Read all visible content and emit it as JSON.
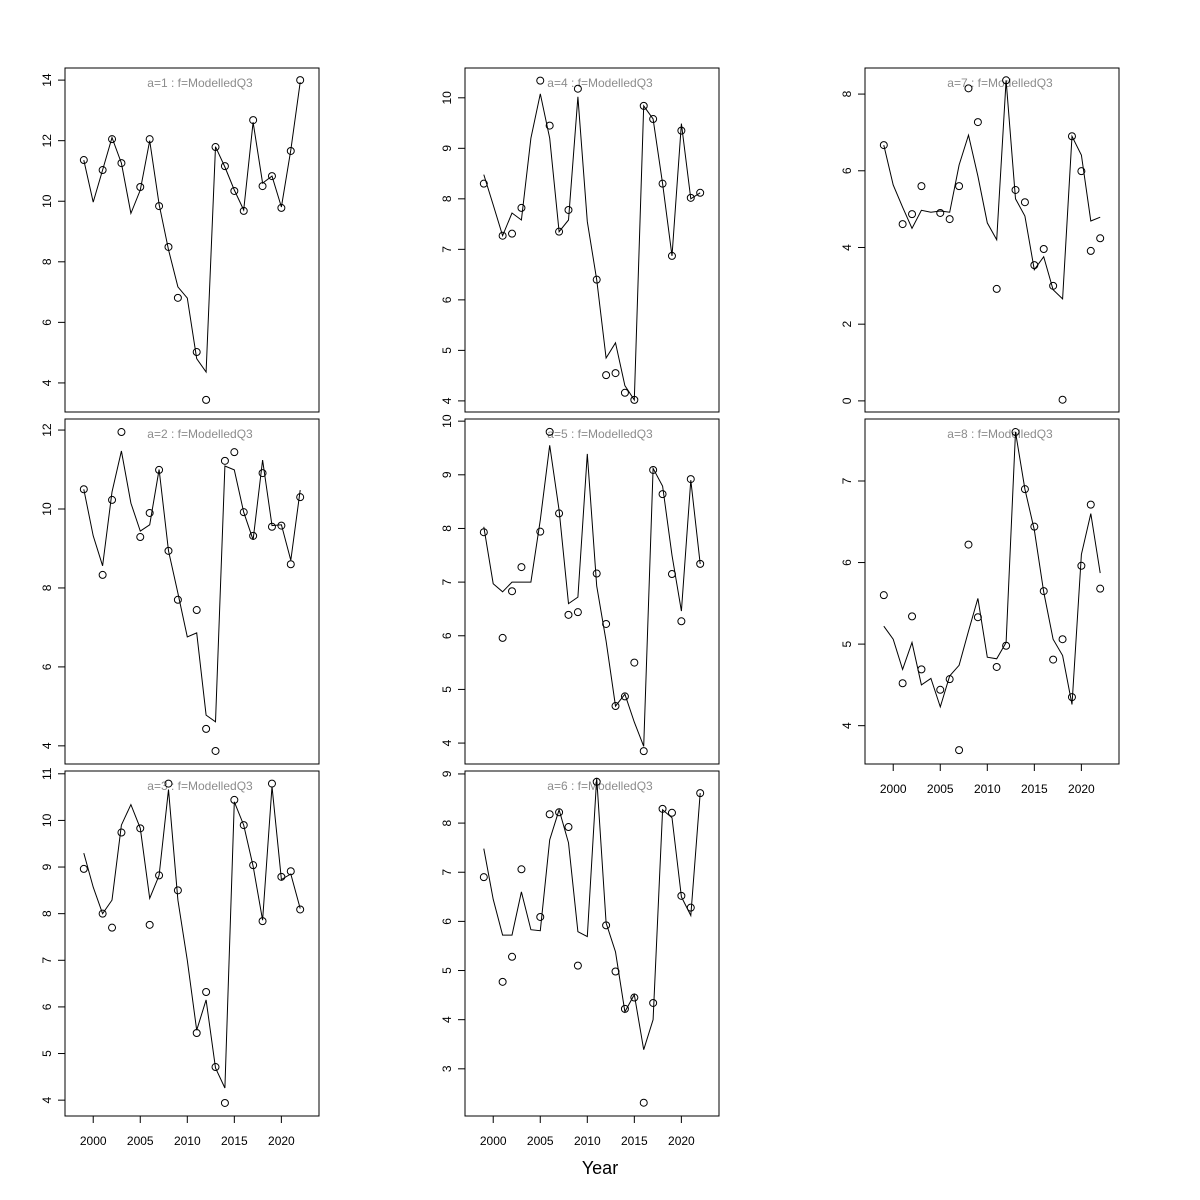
{
  "xlabel": "Year",
  "chart_data": [
    {
      "type": "line",
      "title": "a=1  :  f=ModelledQ3",
      "xlim": [
        1997,
        2024
      ],
      "ylim": [
        3.04,
        14.4
      ],
      "yticks": [
        4,
        6,
        8,
        10,
        12,
        14
      ],
      "xticks": [],
      "x": [
        1999,
        2000,
        2001,
        2002,
        2003,
        2004,
        2005,
        2006,
        2007,
        2008,
        2009,
        2010,
        2011,
        2012,
        2013,
        2014,
        2015,
        2016,
        2017,
        2018,
        2019,
        2020,
        2021,
        2022
      ],
      "observed": [
        11.36,
        null,
        11.03,
        12.05,
        11.26,
        null,
        10.47,
        12.05,
        9.84,
        8.49,
        6.81,
        null,
        5.02,
        3.44,
        11.79,
        11.16,
        10.34,
        9.68,
        12.68,
        10.5,
        10.83,
        9.78,
        11.66,
        14.0
      ],
      "modelled": [
        11.36,
        9.97,
        11.03,
        12.1,
        11.26,
        9.6,
        10.37,
        12.0,
        9.9,
        8.4,
        7.17,
        6.8,
        4.8,
        4.36,
        11.8,
        11.13,
        10.37,
        9.71,
        12.61,
        10.6,
        10.83,
        9.81,
        11.69,
        13.93
      ]
    },
    {
      "type": "line",
      "title": "a=2  :  f=ModelledQ3",
      "xlim": [
        1997,
        2024
      ],
      "ylim": [
        3.54,
        12.28
      ],
      "yticks": [
        4,
        6,
        8,
        10,
        12
      ],
      "xticks": [],
      "x": [
        1999,
        2000,
        2001,
        2002,
        2003,
        2004,
        2005,
        2006,
        2007,
        2008,
        2009,
        2010,
        2011,
        2012,
        2013,
        2014,
        2015,
        2016,
        2017,
        2018,
        2019,
        2020,
        2021,
        2022
      ],
      "observed": [
        10.5,
        null,
        8.33,
        10.23,
        11.95,
        null,
        9.29,
        9.9,
        10.99,
        8.94,
        7.7,
        null,
        7.44,
        4.43,
        3.87,
        11.22,
        11.44,
        9.92,
        9.32,
        10.91,
        9.55,
        9.58,
        8.6,
        10.3
      ],
      "modelled": [
        10.5,
        9.32,
        8.56,
        10.43,
        11.47,
        10.15,
        9.44,
        9.6,
        11.0,
        8.94,
        7.87,
        6.76,
        6.86,
        4.78,
        4.61,
        11.09,
        10.99,
        9.92,
        9.22,
        11.24,
        9.58,
        9.6,
        8.7,
        10.48
      ]
    },
    {
      "type": "line",
      "title": "a=3  :  f=ModelledQ3",
      "xlim": [
        1997,
        2024
      ],
      "ylim": [
        3.66,
        11.06
      ],
      "yticks": [
        4,
        5,
        6,
        7,
        8,
        9,
        10,
        11
      ],
      "xticks": [
        2000,
        2005,
        2010,
        2015,
        2020
      ],
      "x": [
        1999,
        2000,
        2001,
        2002,
        2003,
        2004,
        2005,
        2006,
        2007,
        2008,
        2009,
        2010,
        2011,
        2012,
        2013,
        2014,
        2015,
        2016,
        2017,
        2018,
        2019,
        2020,
        2021,
        2022
      ],
      "observed": [
        8.96,
        null,
        8.0,
        7.7,
        9.74,
        null,
        9.83,
        7.76,
        8.82,
        10.79,
        8.5,
        null,
        5.44,
        6.32,
        4.71,
        3.94,
        10.44,
        9.9,
        9.04,
        7.84,
        10.79,
        8.79,
        8.91,
        8.09
      ],
      "modelled": [
        9.3,
        8.57,
        8.0,
        8.29,
        9.9,
        10.34,
        9.83,
        8.33,
        8.82,
        10.66,
        8.29,
        7.0,
        5.5,
        6.15,
        4.69,
        4.26,
        10.4,
        9.9,
        9.02,
        7.86,
        10.73,
        8.73,
        8.85,
        8.11
      ]
    },
    {
      "type": "line",
      "title": "a=4  :  f=ModelledQ3",
      "xlim": [
        1997,
        2024
      ],
      "ylim": [
        3.78,
        10.59
      ],
      "yticks": [
        4,
        5,
        6,
        7,
        8,
        9,
        10
      ],
      "xticks": [],
      "x": [
        1999,
        2000,
        2001,
        2002,
        2003,
        2004,
        2005,
        2006,
        2007,
        2008,
        2009,
        2010,
        2011,
        2012,
        2013,
        2014,
        2015,
        2016,
        2017,
        2018,
        2019,
        2020,
        2021,
        2022
      ],
      "observed": [
        8.3,
        null,
        7.27,
        7.31,
        7.82,
        null,
        10.34,
        9.45,
        7.35,
        7.78,
        10.18,
        null,
        6.4,
        4.51,
        4.55,
        4.16,
        4.02,
        9.84,
        9.58,
        8.3,
        6.87,
        9.35,
        8.02,
        8.12
      ],
      "modelled": [
        8.48,
        7.88,
        7.27,
        7.72,
        7.58,
        9.2,
        10.08,
        9.2,
        7.35,
        7.58,
        10.02,
        7.55,
        6.4,
        4.85,
        5.15,
        4.3,
        4.02,
        9.84,
        9.58,
        8.3,
        6.87,
        9.49,
        8.0,
        8.12
      ]
    },
    {
      "type": "line",
      "title": "a=5  :  f=ModelledQ3",
      "xlim": [
        1997,
        2024
      ],
      "ylim": [
        3.61,
        10.04
      ],
      "yticks": [
        4,
        5,
        6,
        7,
        8,
        9,
        10
      ],
      "xticks": [],
      "x": [
        1999,
        2000,
        2001,
        2002,
        2003,
        2004,
        2005,
        2006,
        2007,
        2008,
        2009,
        2010,
        2011,
        2012,
        2013,
        2014,
        2015,
        2016,
        2017,
        2018,
        2019,
        2020,
        2021,
        2022
      ],
      "observed": [
        7.93,
        null,
        5.96,
        6.83,
        7.28,
        null,
        7.94,
        9.8,
        8.28,
        6.39,
        6.44,
        null,
        7.16,
        6.22,
        4.69,
        4.87,
        5.5,
        3.85,
        9.09,
        8.64,
        7.15,
        6.27,
        8.92,
        7.34
      ],
      "modelled": [
        8.03,
        6.97,
        6.82,
        7.0,
        7.0,
        7.0,
        8.16,
        9.55,
        8.34,
        6.6,
        6.72,
        9.39,
        6.93,
        5.9,
        4.69,
        4.91,
        4.39,
        3.94,
        9.12,
        8.79,
        7.5,
        6.46,
        8.9,
        7.34
      ]
    },
    {
      "type": "line",
      "title": "a=6  :  f=ModelledQ3",
      "xlim": [
        1997,
        2024
      ],
      "ylim": [
        2.04,
        9.06
      ],
      "yticks": [
        3,
        4,
        5,
        6,
        7,
        8,
        9
      ],
      "xticks": [
        2000,
        2005,
        2010,
        2015,
        2020
      ],
      "x": [
        1999,
        2000,
        2001,
        2002,
        2003,
        2004,
        2005,
        2006,
        2007,
        2008,
        2009,
        2010,
        2011,
        2012,
        2013,
        2014,
        2015,
        2016,
        2017,
        2018,
        2019,
        2020,
        2021,
        2022
      ],
      "observed": [
        6.9,
        null,
        4.77,
        5.28,
        7.06,
        null,
        6.09,
        8.18,
        8.22,
        7.92,
        5.1,
        null,
        8.84,
        5.92,
        4.98,
        4.22,
        4.45,
        2.31,
        4.34,
        8.29,
        8.21,
        6.52,
        6.28,
        8.61
      ],
      "modelled": [
        7.48,
        6.45,
        5.72,
        5.72,
        6.6,
        5.83,
        5.81,
        7.66,
        8.27,
        7.6,
        5.79,
        5.69,
        8.92,
        5.97,
        5.38,
        4.16,
        4.51,
        3.39,
        4.0,
        8.27,
        8.11,
        6.5,
        6.12,
        8.61
      ]
    },
    {
      "type": "line",
      "title": "a=7  :  f=ModelledQ3",
      "xlim": [
        1997,
        2024
      ],
      "ylim": [
        -0.29,
        8.68
      ],
      "yticks": [
        0,
        2,
        4,
        6,
        8
      ],
      "xticks": [],
      "x": [
        1999,
        2000,
        2001,
        2002,
        2003,
        2004,
        2005,
        2006,
        2007,
        2008,
        2009,
        2010,
        2011,
        2012,
        2013,
        2014,
        2015,
        2016,
        2017,
        2018,
        2019,
        2020,
        2021,
        2022
      ],
      "observed": [
        6.67,
        null,
        4.61,
        4.87,
        5.6,
        null,
        4.9,
        4.74,
        5.6,
        8.15,
        7.27,
        null,
        2.92,
        8.36,
        5.5,
        5.18,
        3.54,
        3.96,
        3.0,
        0.03,
        6.9,
        5.99,
        3.91,
        4.24
      ],
      "modelled": [
        6.67,
        5.63,
        5.05,
        4.5,
        4.97,
        4.92,
        4.95,
        4.92,
        6.15,
        6.93,
        5.86,
        4.64,
        4.2,
        8.36,
        5.27,
        4.82,
        3.42,
        3.76,
        2.9,
        2.66,
        6.9,
        6.41,
        4.69,
        4.79
      ]
    },
    {
      "type": "line",
      "title": "a=8  :  f=ModelledQ3",
      "xlim": [
        1997,
        2024
      ],
      "ylim": [
        3.53,
        7.76
      ],
      "yticks": [
        4,
        5,
        6,
        7
      ],
      "xticks": [
        2000,
        2005,
        2010,
        2015,
        2020
      ],
      "x": [
        1999,
        2000,
        2001,
        2002,
        2003,
        2004,
        2005,
        2006,
        2007,
        2008,
        2009,
        2010,
        2011,
        2012,
        2013,
        2014,
        2015,
        2016,
        2017,
        2018,
        2019,
        2020,
        2021,
        2022
      ],
      "observed": [
        5.6,
        null,
        4.52,
        5.34,
        4.69,
        null,
        4.44,
        4.57,
        3.7,
        6.22,
        5.33,
        null,
        4.72,
        4.98,
        7.6,
        6.9,
        6.44,
        5.65,
        4.81,
        5.06,
        4.35,
        5.96,
        6.71,
        5.68
      ],
      "modelled": [
        5.22,
        5.06,
        4.69,
        5.02,
        4.5,
        4.58,
        4.23,
        4.61,
        4.74,
        5.16,
        5.56,
        4.84,
        4.82,
        5.02,
        7.6,
        6.9,
        6.4,
        5.64,
        5.06,
        4.86,
        4.26,
        6.1,
        6.6,
        5.87
      ]
    }
  ]
}
